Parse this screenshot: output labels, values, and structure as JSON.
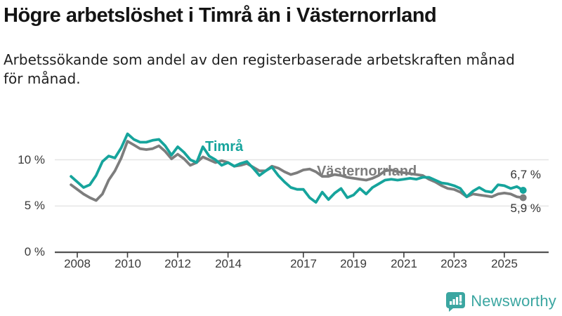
{
  "header": {
    "title": "Högre arbetslöshet i Timrå än i Västernorrland",
    "subtitle_line1": "Arbetssökande som andel av den registerbaserade arbetskraften månad",
    "subtitle_line2": "för månad."
  },
  "chart_data": {
    "type": "line",
    "title": "Högre arbetslöshet i Timrå än i Västernorrland",
    "subtitle": "Arbetssökande som andel av den registerbaserade arbetskraften månad för månad.",
    "unit": "%",
    "x_start": 2007.75,
    "x_step": 0.25,
    "xlim": [
      2007.5,
      2026.1
    ],
    "ylim": [
      0,
      14.5
    ],
    "grid": "horizontal-only",
    "legend_position": "inline-labels",
    "x_ticks": [
      2008,
      2010,
      2012,
      2014,
      2017,
      2019,
      2021,
      2023,
      2025
    ],
    "y_ticks": [
      {
        "value": 10,
        "label": "10 %"
      },
      {
        "value": 5,
        "label": "5 %"
      },
      {
        "value": 0,
        "label": "0 %"
      }
    ],
    "series": [
      {
        "name": "Timrå",
        "color": "#16a49c",
        "end_label": "6,7 %",
        "last_value": 6.7,
        "values": [
          8.2,
          7.6,
          7.0,
          7.3,
          8.3,
          9.8,
          10.4,
          10.2,
          11.3,
          12.8,
          12.2,
          11.9,
          11.9,
          12.1,
          12.2,
          11.5,
          10.5,
          11.4,
          10.8,
          10.0,
          9.7,
          11.4,
          10.4,
          10.0,
          9.4,
          9.7,
          9.3,
          9.6,
          9.8,
          9.1,
          8.3,
          8.8,
          9.2,
          8.3,
          7.6,
          7.0,
          6.8,
          6.8,
          5.9,
          5.4,
          6.5,
          5.7,
          6.4,
          6.9,
          5.9,
          6.2,
          6.9,
          6.3,
          7.0,
          7.4,
          7.8,
          7.9,
          7.8,
          7.9,
          8.0,
          7.9,
          8.1,
          8.1,
          7.8,
          7.5,
          7.4,
          7.2,
          6.9,
          6.0,
          6.6,
          7.0,
          6.6,
          6.5,
          7.3,
          7.2,
          6.9,
          7.1,
          6.7
        ]
      },
      {
        "name": "Västernorrland",
        "color": "#7d7d7d",
        "end_label": "5,9 %",
        "last_value": 5.9,
        "values": [
          7.3,
          6.8,
          6.3,
          5.9,
          5.6,
          6.3,
          7.8,
          8.8,
          10.2,
          12.0,
          11.6,
          11.2,
          11.1,
          11.2,
          11.5,
          10.9,
          10.1,
          10.6,
          10.1,
          9.4,
          9.7,
          10.3,
          10.0,
          9.7,
          9.9,
          9.7,
          9.3,
          9.4,
          9.6,
          9.2,
          8.8,
          8.8,
          9.3,
          9.1,
          8.7,
          8.4,
          8.6,
          8.9,
          9.0,
          8.7,
          8.2,
          8.2,
          8.4,
          8.3,
          8.1,
          8.0,
          7.9,
          7.8,
          8.0,
          8.3,
          8.8,
          8.9,
          8.7,
          8.6,
          8.5,
          8.4,
          8.3,
          7.9,
          7.6,
          7.2,
          6.9,
          6.8,
          6.5,
          6.0,
          6.3,
          6.2,
          6.1,
          6.0,
          6.3,
          6.4,
          6.3,
          6.0,
          5.9
        ]
      }
    ],
    "colors": {
      "gridline": "#e5e5e5",
      "axis": "#3d3d3d",
      "tick_text": "#3a3a3a",
      "value_text": "#333333"
    }
  },
  "footer": {
    "brand": "Newsworthy",
    "brand_color": "#3ba6a1"
  }
}
